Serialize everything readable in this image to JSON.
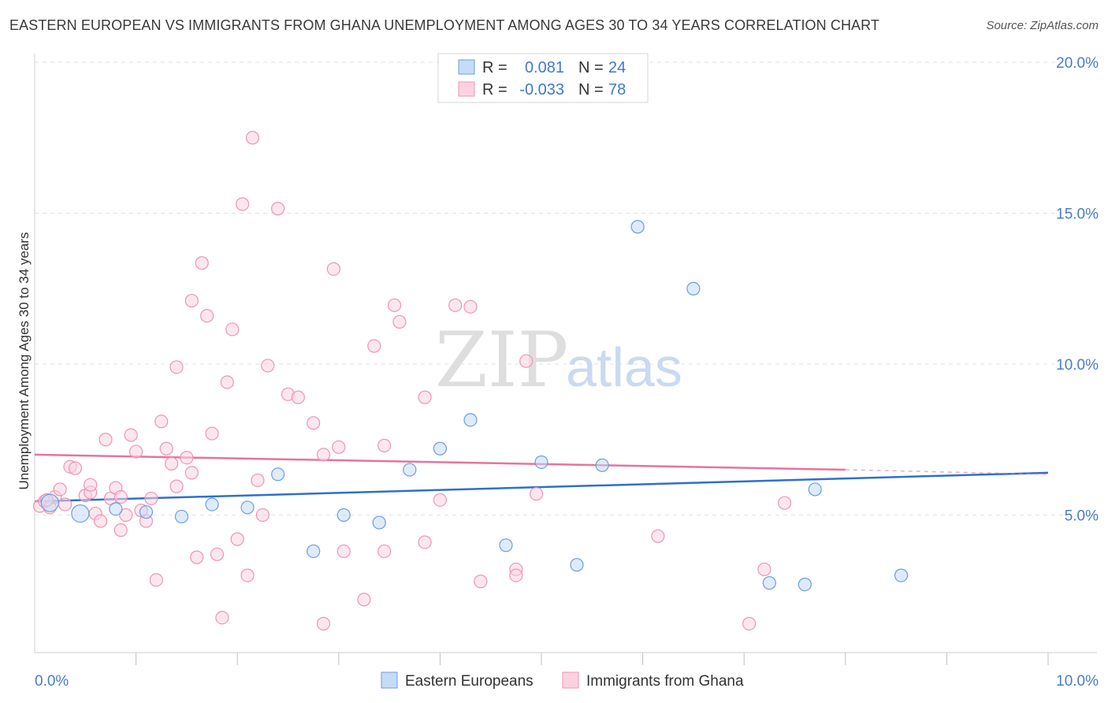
{
  "title": "EASTERN EUROPEAN VS IMMIGRANTS FROM GHANA UNEMPLOYMENT AMONG AGES 30 TO 34 YEARS CORRELATION CHART",
  "source": "Source: ZipAtlas.com",
  "watermark": {
    "zip": "ZIP",
    "atlas": "atlas"
  },
  "legend": {
    "r_label": "R =",
    "n_label": "N =",
    "rows": [
      {
        "series": "Eastern Europeans",
        "r": "0.081",
        "n": "24",
        "color": "#aac8f2"
      },
      {
        "series": "Immigrants from Ghana",
        "r": "-0.033",
        "n": "78",
        "color": "#f8bdd0"
      }
    ]
  },
  "chart_data": {
    "type": "scatter",
    "xlabel": "",
    "ylabel": "Unemployment Among Ages 30 to 34 years",
    "xlim": [
      0,
      10
    ],
    "ylim": [
      0,
      20
    ],
    "x_tick_labels": [
      "0.0%",
      "10.0%"
    ],
    "y_tick_labels": [
      "5.0%",
      "10.0%",
      "15.0%",
      "20.0%"
    ],
    "y_ticks": [
      5,
      10,
      15,
      20
    ],
    "grid": true,
    "legend_position": "bottom",
    "series": [
      {
        "name": "Eastern Europeans",
        "color": "#6a9ee0",
        "fill": "#c5dbf6",
        "trend": {
          "x": [
            0,
            10
          ],
          "y": [
            5.45,
            6.4
          ],
          "color": "#2f6fcf"
        },
        "points": [
          {
            "x": 0.15,
            "y": 5.4,
            "big": true
          },
          {
            "x": 0.45,
            "y": 5.05,
            "big": true
          },
          {
            "x": 0.8,
            "y": 5.2
          },
          {
            "x": 1.1,
            "y": 5.1
          },
          {
            "x": 1.45,
            "y": 4.95
          },
          {
            "x": 1.75,
            "y": 5.35
          },
          {
            "x": 2.1,
            "y": 5.25
          },
          {
            "x": 2.4,
            "y": 6.35
          },
          {
            "x": 2.75,
            "y": 3.8
          },
          {
            "x": 3.05,
            "y": 5.0
          },
          {
            "x": 3.4,
            "y": 4.75
          },
          {
            "x": 3.7,
            "y": 6.5
          },
          {
            "x": 4.0,
            "y": 7.2
          },
          {
            "x": 4.3,
            "y": 8.15
          },
          {
            "x": 4.65,
            "y": 4.0
          },
          {
            "x": 5.0,
            "y": 6.75
          },
          {
            "x": 5.35,
            "y": 3.35
          },
          {
            "x": 5.6,
            "y": 6.65
          },
          {
            "x": 5.95,
            "y": 14.55
          },
          {
            "x": 6.5,
            "y": 12.5
          },
          {
            "x": 7.25,
            "y": 2.75
          },
          {
            "x": 7.6,
            "y": 2.7
          },
          {
            "x": 7.7,
            "y": 5.85
          },
          {
            "x": 8.55,
            "y": 3.0
          }
        ]
      },
      {
        "name": "Immigrants from Ghana",
        "color": "#f094b3",
        "fill": "#fbd3e0",
        "trend": {
          "x": [
            0,
            8
          ],
          "y": [
            7.0,
            6.5
          ],
          "dash_to": [
            10,
            6.35
          ],
          "color": "#e8739c"
        },
        "points": [
          {
            "x": 0.05,
            "y": 5.3
          },
          {
            "x": 0.1,
            "y": 5.45
          },
          {
            "x": 0.15,
            "y": 5.25
          },
          {
            "x": 0.2,
            "y": 5.6
          },
          {
            "x": 0.25,
            "y": 5.85
          },
          {
            "x": 0.3,
            "y": 5.35
          },
          {
            "x": 0.35,
            "y": 6.6
          },
          {
            "x": 0.4,
            "y": 6.55
          },
          {
            "x": 0.5,
            "y": 5.65
          },
          {
            "x": 0.55,
            "y": 5.75
          },
          {
            "x": 0.55,
            "y": 6.0
          },
          {
            "x": 0.6,
            "y": 5.05
          },
          {
            "x": 0.65,
            "y": 4.8
          },
          {
            "x": 0.7,
            "y": 7.5
          },
          {
            "x": 0.75,
            "y": 5.55
          },
          {
            "x": 0.8,
            "y": 5.9
          },
          {
            "x": 0.85,
            "y": 5.6
          },
          {
            "x": 0.85,
            "y": 4.5
          },
          {
            "x": 0.9,
            "y": 5.0
          },
          {
            "x": 0.95,
            "y": 7.65
          },
          {
            "x": 1.0,
            "y": 7.1
          },
          {
            "x": 1.05,
            "y": 5.15
          },
          {
            "x": 1.1,
            "y": 4.8
          },
          {
            "x": 1.15,
            "y": 5.55
          },
          {
            "x": 1.2,
            "y": 2.85
          },
          {
            "x": 1.25,
            "y": 8.1
          },
          {
            "x": 1.3,
            "y": 7.2
          },
          {
            "x": 1.35,
            "y": 6.7
          },
          {
            "x": 1.4,
            "y": 5.95
          },
          {
            "x": 1.4,
            "y": 9.9
          },
          {
            "x": 1.5,
            "y": 6.9
          },
          {
            "x": 1.55,
            "y": 12.1
          },
          {
            "x": 1.55,
            "y": 6.4
          },
          {
            "x": 1.6,
            "y": 3.6
          },
          {
            "x": 1.65,
            "y": 13.35
          },
          {
            "x": 1.7,
            "y": 11.6
          },
          {
            "x": 1.75,
            "y": 7.7
          },
          {
            "x": 1.8,
            "y": 3.7
          },
          {
            "x": 1.85,
            "y": 1.6
          },
          {
            "x": 1.9,
            "y": 9.4
          },
          {
            "x": 1.95,
            "y": 11.15
          },
          {
            "x": 2.0,
            "y": 4.2
          },
          {
            "x": 2.05,
            "y": 15.3
          },
          {
            "x": 2.1,
            "y": 3.0
          },
          {
            "x": 2.15,
            "y": 17.5
          },
          {
            "x": 2.2,
            "y": 6.15
          },
          {
            "x": 2.25,
            "y": 5.0
          },
          {
            "x": 2.3,
            "y": 9.95
          },
          {
            "x": 2.4,
            "y": 15.15
          },
          {
            "x": 2.5,
            "y": 9.0
          },
          {
            "x": 2.6,
            "y": 8.9
          },
          {
            "x": 2.75,
            "y": 8.05
          },
          {
            "x": 2.85,
            "y": 7.0
          },
          {
            "x": 2.85,
            "y": 1.4
          },
          {
            "x": 2.95,
            "y": 13.15
          },
          {
            "x": 3.0,
            "y": 7.25
          },
          {
            "x": 3.05,
            "y": 3.8
          },
          {
            "x": 3.25,
            "y": 2.2
          },
          {
            "x": 3.35,
            "y": 10.6
          },
          {
            "x": 3.45,
            "y": 7.3
          },
          {
            "x": 3.45,
            "y": 3.8
          },
          {
            "x": 3.55,
            "y": 11.95
          },
          {
            "x": 3.6,
            "y": 11.4
          },
          {
            "x": 3.85,
            "y": 4.1
          },
          {
            "x": 3.85,
            "y": 8.9
          },
          {
            "x": 4.0,
            "y": 5.5
          },
          {
            "x": 4.15,
            "y": 11.95
          },
          {
            "x": 4.3,
            "y": 11.9
          },
          {
            "x": 4.4,
            "y": 2.8
          },
          {
            "x": 4.75,
            "y": 3.2
          },
          {
            "x": 4.75,
            "y": 3.0
          },
          {
            "x": 4.85,
            "y": 10.1
          },
          {
            "x": 4.95,
            "y": 5.7
          },
          {
            "x": 6.15,
            "y": 4.3
          },
          {
            "x": 7.05,
            "y": 1.4
          },
          {
            "x": 7.2,
            "y": 3.2
          },
          {
            "x": 7.4,
            "y": 5.4
          },
          {
            "x": 0.12,
            "y": 5.5
          }
        ]
      }
    ]
  }
}
